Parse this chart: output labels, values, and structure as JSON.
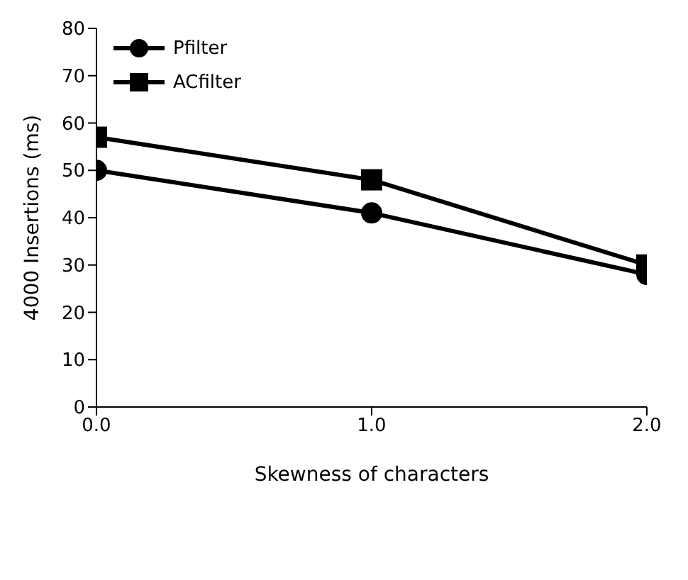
{
  "chart_data": {
    "type": "line",
    "xlabel": "Skewness of characters",
    "ylabel": "4000 Insertions (ms)",
    "x": [
      0,
      1,
      2
    ],
    "series": [
      {
        "name": "Pfilter",
        "color": "#000000",
        "marker": "circle",
        "values": [
          50,
          41,
          28
        ]
      },
      {
        "name": "ACfilter",
        "color": "#000000",
        "marker": "square",
        "values": [
          57,
          48,
          30
        ]
      }
    ],
    "xlim": [
      0,
      2
    ],
    "xticks": [
      {
        "value": 0,
        "label": "0.0"
      },
      {
        "value": 1,
        "label": "1.0"
      },
      {
        "value": 2,
        "label": "2.0"
      }
    ],
    "ylim": [
      0,
      80
    ],
    "yticks": [
      0,
      10,
      20,
      30,
      40,
      50,
      60,
      70,
      80
    ],
    "grid": false,
    "legend": "top left"
  }
}
